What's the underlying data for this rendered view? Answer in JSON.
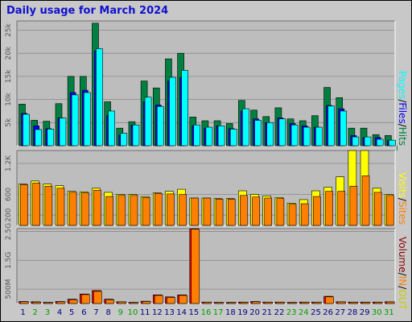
{
  "title": "Daily usage for March 2024",
  "colors": {
    "hits": "#008040",
    "files": "#0000ff",
    "pages": "#00ffff",
    "visits": "#ffff00",
    "sites": "#ff8000",
    "kbin": "#ff8000",
    "kbout": "#ff0000",
    "weekend": "#00a000",
    "weekday": "#000080",
    "panel_bg": "#bdbdbd",
    "frame_bg": "#c8c8c8",
    "title": "#1010d0"
  },
  "chart_data": [
    {
      "type": "bar",
      "name": "hits-files-pages",
      "ylim": [
        0,
        27000
      ],
      "yticks": [
        "5k",
        "10k",
        "15k",
        "20k",
        "25k"
      ],
      "ytick_values": [
        5000,
        10000,
        15000,
        20000,
        25000
      ],
      "legend": [
        "Pages",
        "/",
        "Files",
        "/",
        "Hits",
        "_"
      ],
      "series": [
        {
          "name": "Hits",
          "values": [
            9000,
            5500,
            5300,
            9100,
            15000,
            15000,
            26500,
            9500,
            3800,
            5200,
            14000,
            12500,
            18800,
            20000,
            6200,
            5400,
            5400,
            4800,
            9800,
            7700,
            6300,
            8200,
            5800,
            5400,
            6500,
            12600,
            10400,
            3800,
            3800,
            2400,
            2200
          ]
        },
        {
          "name": "Files",
          "values": [
            7000,
            4300,
            3700,
            6000,
            11500,
            12000,
            20500,
            6500,
            2300,
            4500,
            9500,
            8800,
            14000,
            14800,
            4300,
            3800,
            4300,
            3700,
            7500,
            5800,
            5000,
            6000,
            4800,
            4300,
            4000,
            8700,
            8000,
            2200,
            1800,
            1800,
            1100
          ]
        },
        {
          "name": "Pages",
          "values": [
            6800,
            3500,
            3600,
            6000,
            11000,
            11500,
            21000,
            7500,
            2700,
            4500,
            10500,
            8500,
            14800,
            16300,
            4500,
            4000,
            4300,
            3600,
            8000,
            5500,
            5000,
            5800,
            4500,
            4000,
            4000,
            8600,
            7500,
            1900,
            1900,
            1400,
            1200
          ]
        }
      ]
    },
    {
      "type": "bar",
      "name": "visits-sites",
      "ylim": [
        0,
        1450
      ],
      "yticks": [
        "200",
        "600",
        "1.2K"
      ],
      "ytick_values": [
        200,
        600,
        1200
      ],
      "legend": [
        "Visits",
        "/",
        "Sites"
      ],
      "series": [
        {
          "name": "Visits",
          "values": [
            800,
            860,
            800,
            770,
            660,
            650,
            720,
            640,
            600,
            600,
            560,
            630,
            660,
            700,
            530,
            530,
            520,
            520,
            670,
            600,
            570,
            540,
            430,
            500,
            670,
            740,
            940,
            1450,
            1450,
            720,
            600
          ]
        },
        {
          "name": "Sites",
          "values": [
            790,
            820,
            760,
            720,
            640,
            630,
            680,
            560,
            580,
            580,
            540,
            620,
            610,
            600,
            530,
            530,
            510,
            510,
            580,
            550,
            530,
            520,
            410,
            420,
            560,
            660,
            660,
            760,
            960,
            640,
            580
          ]
        }
      ]
    },
    {
      "type": "bar",
      "name": "volume",
      "ylim": [
        0,
        2600
      ],
      "yticks": [
        "500M",
        "1.5G",
        "2.5G"
      ],
      "ytick_values": [
        500,
        1500,
        2500
      ],
      "legend": [
        "Volume",
        "/",
        "IN",
        "/",
        "OUT"
      ],
      "series": [
        {
          "name": "OUT",
          "values": [
            70,
            60,
            40,
            70,
            150,
            330,
            450,
            150,
            60,
            40,
            80,
            300,
            230,
            300,
            2600,
            50,
            40,
            40,
            50,
            70,
            50,
            50,
            40,
            50,
            50,
            250,
            60,
            50,
            50,
            50,
            60
          ]
        },
        {
          "name": "IN",
          "values": [
            60,
            50,
            35,
            60,
            130,
            310,
            420,
            130,
            55,
            35,
            70,
            280,
            210,
            280,
            2580,
            45,
            35,
            35,
            45,
            60,
            45,
            45,
            35,
            45,
            45,
            230,
            55,
            45,
            45,
            45,
            55
          ]
        }
      ],
      "categories": [
        "1",
        "2",
        "3",
        "4",
        "5",
        "6",
        "7",
        "8",
        "9",
        "10",
        "11",
        "12",
        "13",
        "14",
        "15",
        "16",
        "17",
        "18",
        "19",
        "20",
        "21",
        "22",
        "23",
        "24",
        "25",
        "26",
        "27",
        "28",
        "29",
        "30",
        "31"
      ],
      "weekend_days": [
        2,
        3,
        9,
        10,
        16,
        17,
        23,
        24,
        30,
        31
      ]
    }
  ]
}
